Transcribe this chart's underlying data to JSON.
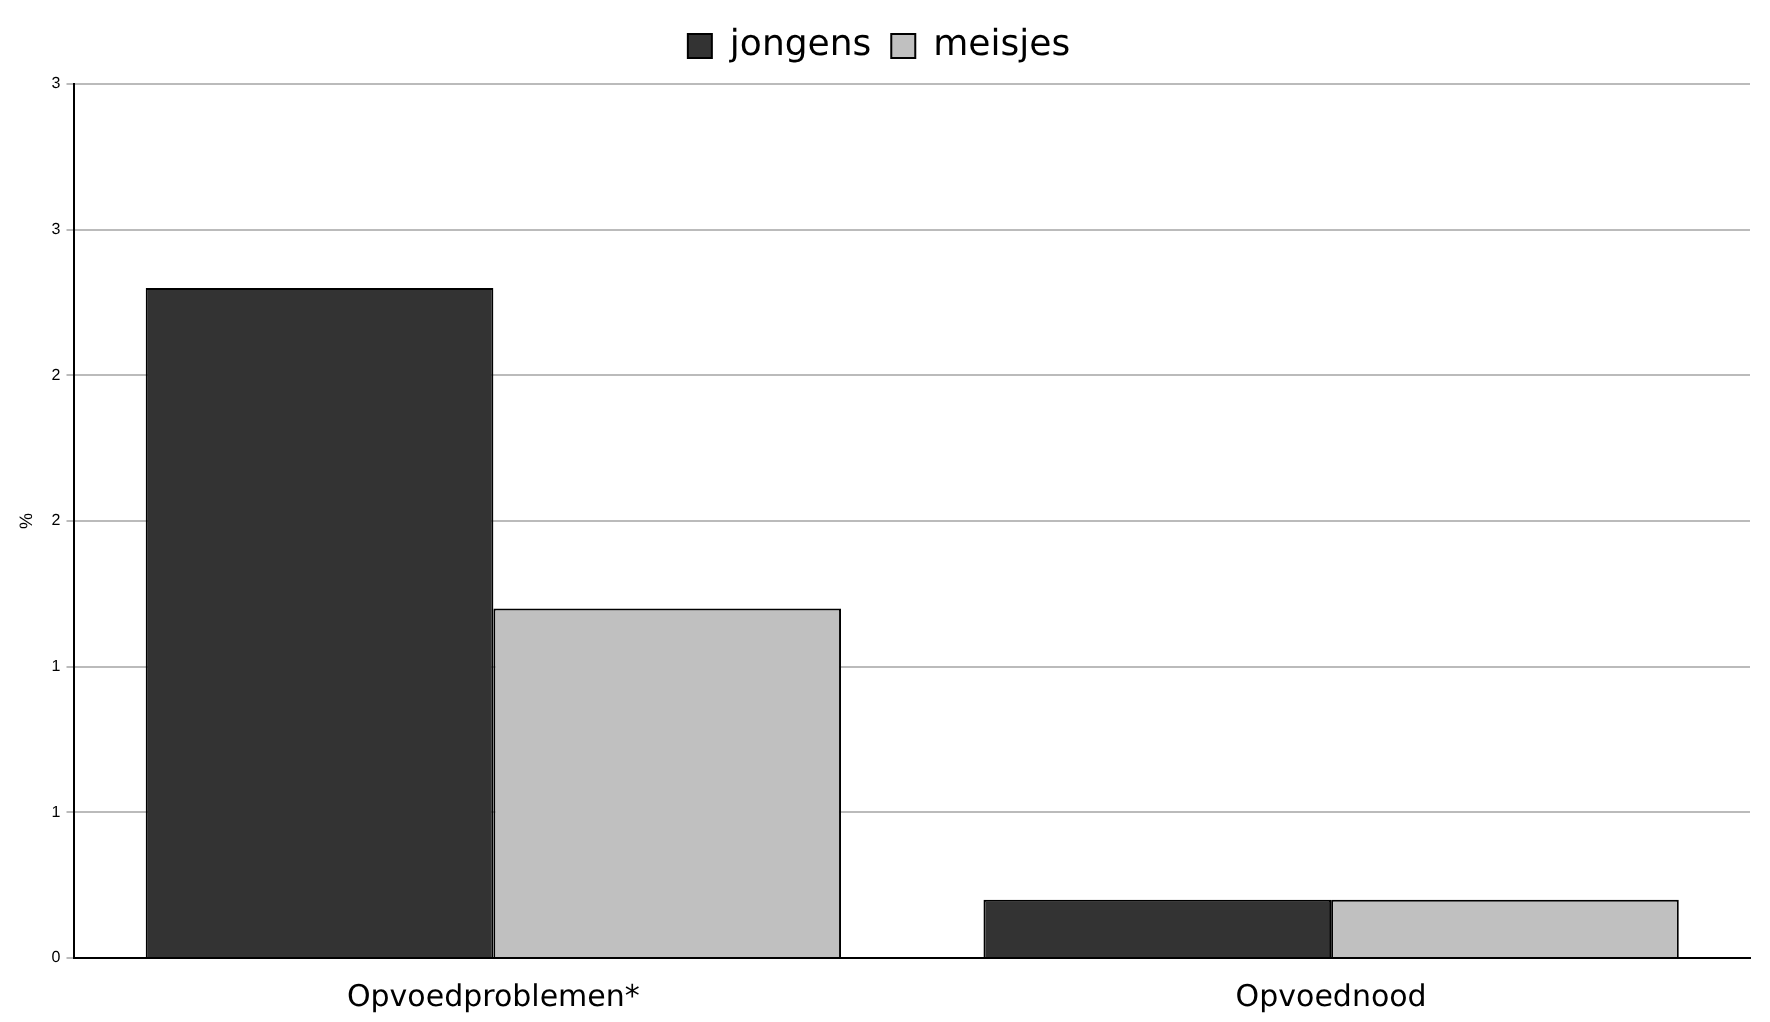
{
  "chart_data": {
    "type": "bar",
    "ylabel": "%",
    "categories": [
      "Opvoedproblemen*",
      "Opvoednood"
    ],
    "series": [
      {
        "name": "jongens",
        "color": "#333333",
        "values": [
          2.3,
          0.2
        ]
      },
      {
        "name": "meisjes",
        "color": "#c0c0c0",
        "values": [
          1.2,
          0.2
        ]
      }
    ],
    "ylim": [
      0,
      3
    ],
    "yticks": [
      {
        "value": 0,
        "label": "0"
      },
      {
        "value": 0.5,
        "label": "1"
      },
      {
        "value": 1,
        "label": "1"
      },
      {
        "value": 1.5,
        "label": "2"
      },
      {
        "value": 2,
        "label": "2"
      },
      {
        "value": 2.5,
        "label": "3"
      },
      {
        "value": 3,
        "label": "3"
      }
    ],
    "grid": "y",
    "legend": "top"
  }
}
